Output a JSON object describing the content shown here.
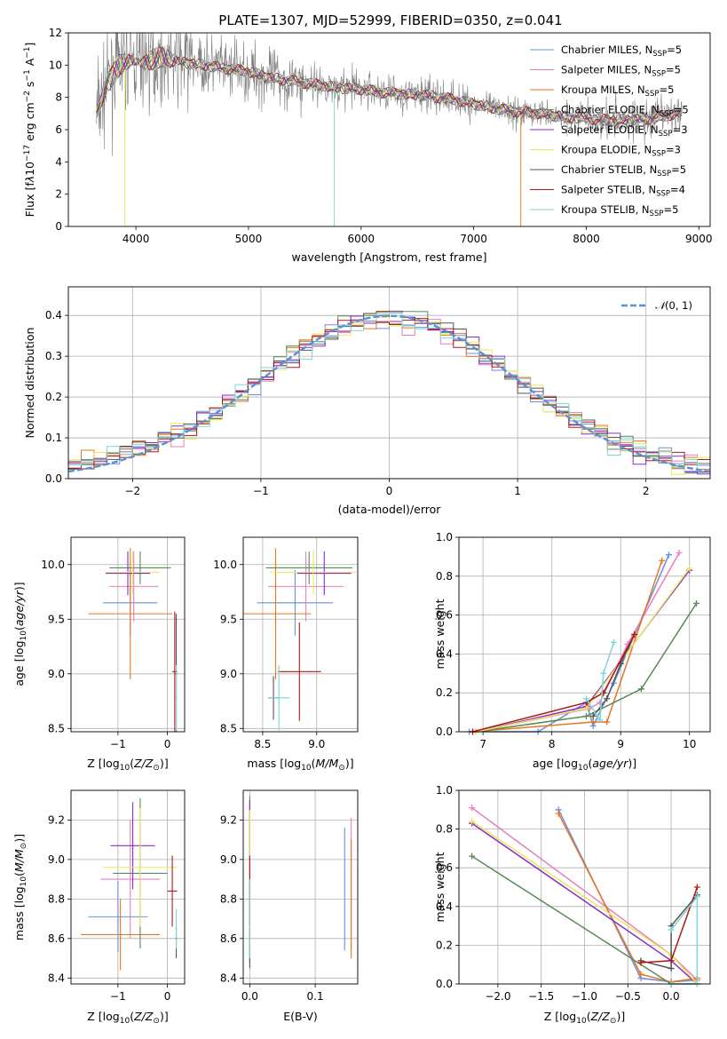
{
  "title": "PLATE=1307, MJD=52999, FIBERID=0350, z=0.041",
  "colors": {
    "Chabrier MILES": "#6a8fe0",
    "Salpeter MILES": "#e87fbf",
    "Kroupa MILES": "#e8761e",
    "Chabrier ELODIE": "#5a8a5a",
    "Salpeter ELODIE": "#8a2bc8",
    "Kroupa ELODIE": "#e8e85a",
    "Chabrier STELIB": "#555555",
    "Salpeter STELIB": "#b01818",
    "Kroupa STELIB": "#7fd6d6",
    "data": "#808080",
    "normal": "#5b8fd9"
  },
  "chart_data": [
    {
      "id": "spectrum",
      "type": "line",
      "title": "PLATE=1307, MJD=52999, FIBERID=0350, z=0.041",
      "xlabel": "wavelength [Angstrom, rest frame]",
      "ylabel": "Flux [f_λ10^-17 erg cm^-2 s^-1 A^-1]",
      "xlim": [
        3400,
        9100
      ],
      "ylim": [
        0,
        12
      ],
      "xticks": [
        4000,
        5000,
        6000,
        7000,
        8000,
        9000
      ],
      "yticks": [
        0,
        2,
        4,
        6,
        8,
        10,
        12
      ],
      "continuum": [
        [
          3650,
          7.0
        ],
        [
          3750,
          9.0
        ],
        [
          3850,
          10.0
        ],
        [
          3950,
          10.2
        ],
        [
          4050,
          10.2
        ],
        [
          4200,
          10.4
        ],
        [
          4400,
          10.2
        ],
        [
          4600,
          10.0
        ],
        [
          4800,
          9.8
        ],
        [
          5000,
          9.6
        ],
        [
          5200,
          9.2
        ],
        [
          5400,
          9.0
        ],
        [
          5600,
          8.8
        ],
        [
          5800,
          8.6
        ],
        [
          6000,
          8.5
        ],
        [
          6200,
          8.3
        ],
        [
          6400,
          8.2
        ],
        [
          6600,
          8.1
        ],
        [
          6800,
          7.9
        ],
        [
          7000,
          7.6
        ],
        [
          7200,
          7.3
        ],
        [
          7400,
          7.1
        ],
        [
          7600,
          7.0
        ],
        [
          7800,
          6.8
        ],
        [
          8000,
          6.7
        ],
        [
          8200,
          6.6
        ],
        [
          8400,
          6.6
        ],
        [
          8600,
          6.7
        ],
        [
          8800,
          7.0
        ]
      ],
      "legend": [
        "Chabrier MILES, N_SSP=5",
        "Salpeter MILES, N_SSP=5",
        "Kroupa MILES, N_SSP=5",
        "Chabrier ELODIE, N_SSP=5",
        "Salpeter ELODIE, N_SSP=3",
        "Kroupa ELODIE, N_SSP=3",
        "Chabrier STELIB, N_SSP=5",
        "Salpeter STELIB, N_SSP=4",
        "Kroupa STELIB, N_SSP=5"
      ]
    },
    {
      "id": "residuals",
      "type": "histogram",
      "xlabel": "(data-model)/error",
      "ylabel": "Normed distribution",
      "xlim": [
        -2.5,
        2.5
      ],
      "ylim": [
        0,
        0.47
      ],
      "xticks": [
        -2,
        -1,
        0,
        1,
        2
      ],
      "yticks": [
        0.0,
        0.1,
        0.2,
        0.3,
        0.4
      ],
      "bin_width": 0.1,
      "legend": "N(0,1)"
    },
    {
      "id": "age-vs-Z",
      "type": "errorbar",
      "xlabel": "Z [log10(Z/Z⊙)]",
      "ylabel": "age  [log10(age/yr)]",
      "xlim": [
        -1.95,
        0.35
      ],
      "ylim": [
        8.47,
        10.25
      ],
      "xticks": [
        -1,
        0
      ],
      "yticks": [
        8.5,
        9.0,
        9.5,
        10.0
      ],
      "points": [
        {
          "model": "Chabrier MILES",
          "x": -0.75,
          "xerr": 0.55,
          "y": 9.65,
          "yerr": 0.3
        },
        {
          "model": "Salpeter MILES",
          "x": -0.68,
          "xerr": 0.5,
          "y": 9.8,
          "yerr": 0.32
        },
        {
          "model": "Kroupa MILES",
          "x": -0.75,
          "xerr": 0.85,
          "y": 9.55,
          "yerr": 0.6
        },
        {
          "model": "Chabrier ELODIE",
          "x": -0.55,
          "xerr": 0.62,
          "y": 9.97,
          "yerr": 0.15
        },
        {
          "model": "Salpeter ELODIE",
          "x": -0.8,
          "xerr": 0.45,
          "y": 9.92,
          "yerr": 0.2
        },
        {
          "model": "Kroupa ELODIE",
          "x": -0.7,
          "xerr": 0.55,
          "y": 9.93,
          "yerr": 0.2
        },
        {
          "model": "Chabrier STELIB",
          "x": 0.18,
          "xerr": 0.02,
          "y": 9.0,
          "yerr": 0.55
        },
        {
          "model": "Salpeter STELIB",
          "x": 0.15,
          "xerr": 0.05,
          "y": 9.02,
          "yerr": 0.55
        },
        {
          "model": "Kroupa STELIB",
          "x": 0.18,
          "xerr": 0.02,
          "y": 8.78,
          "yerr": 0.3
        }
      ]
    },
    {
      "id": "age-vs-mass",
      "type": "errorbar",
      "xlabel": "mass [log10(M/M⊙)]",
      "ylabel": "",
      "xlim": [
        8.32,
        9.38
      ],
      "ylim": [
        8.47,
        10.25
      ],
      "xticks": [
        8.5,
        9.0
      ],
      "yticks": [
        8.5,
        9.0,
        9.5,
        10.0
      ],
      "points": [
        {
          "model": "Chabrier MILES",
          "x": 8.8,
          "xerr": 0.35,
          "y": 9.65,
          "yerr": 0.3
        },
        {
          "model": "Salpeter MILES",
          "x": 8.9,
          "xerr": 0.35,
          "y": 9.8,
          "yerr": 0.32
        },
        {
          "model": "Kroupa MILES",
          "x": 8.62,
          "xerr": 0.33,
          "y": 9.55,
          "yerr": 0.6
        },
        {
          "model": "Chabrier ELODIE",
          "x": 8.93,
          "xerr": 0.4,
          "y": 9.97,
          "yerr": 0.15
        },
        {
          "model": "Salpeter ELODIE",
          "x": 9.07,
          "xerr": 0.25,
          "y": 9.92,
          "yerr": 0.2
        },
        {
          "model": "Kroupa ELODIE",
          "x": 8.97,
          "xerr": 0.4,
          "y": 9.93,
          "yerr": 0.2
        },
        {
          "model": "Chabrier STELIB",
          "x": 8.6,
          "xerr": 0.05,
          "y": 8.78,
          "yerr": 0.2
        },
        {
          "model": "Salpeter STELIB",
          "x": 8.84,
          "xerr": 0.2,
          "y": 9.02,
          "yerr": 0.45
        },
        {
          "model": "Kroupa STELIB",
          "x": 8.65,
          "xerr": 0.1,
          "y": 8.78,
          "yerr": 0.3
        }
      ]
    },
    {
      "id": "massweight-vs-age",
      "type": "line",
      "xlabel": "age  [log10(age/yr)]",
      "ylabel": "mass weight",
      "xlim": [
        6.65,
        10.3
      ],
      "ylim": [
        0,
        1.0
      ],
      "xticks": [
        7,
        8,
        9,
        10
      ],
      "yticks": [
        0.0,
        0.2,
        0.4,
        0.6,
        0.8,
        1.0
      ],
      "series": [
        {
          "model": "Chabrier MILES",
          "points": [
            [
              6.8,
              0.0
            ],
            [
              7.8,
              0.0
            ],
            [
              8.5,
              0.15
            ],
            [
              8.6,
              0.03
            ],
            [
              8.9,
              0.25
            ],
            [
              9.7,
              0.91
            ]
          ]
        },
        {
          "model": "Salpeter MILES",
          "points": [
            [
              6.9,
              0.0
            ],
            [
              8.55,
              0.12
            ],
            [
              8.7,
              0.15
            ],
            [
              9.1,
              0.45
            ],
            [
              9.85,
              0.92
            ]
          ]
        },
        {
          "model": "Kroupa MILES",
          "points": [
            [
              6.85,
              0.0
            ],
            [
              8.6,
              0.05
            ],
            [
              8.8,
              0.05
            ],
            [
              9.6,
              0.88
            ]
          ]
        },
        {
          "model": "Chabrier ELODIE",
          "points": [
            [
              6.9,
              0.0
            ],
            [
              8.5,
              0.08
            ],
            [
              9.3,
              0.22
            ],
            [
              10.1,
              0.66
            ]
          ]
        },
        {
          "model": "Salpeter ELODIE",
          "points": [
            [
              6.9,
              0.0
            ],
            [
              8.5,
              0.13
            ],
            [
              10.0,
              0.83
            ]
          ]
        },
        {
          "model": "Kroupa ELODIE",
          "points": [
            [
              6.9,
              0.0
            ],
            [
              8.5,
              0.12
            ],
            [
              10.0,
              0.84
            ]
          ]
        },
        {
          "model": "Chabrier STELIB",
          "points": [
            [
              8.6,
              0.08
            ],
            [
              8.8,
              0.17
            ],
            [
              9.0,
              0.35
            ],
            [
              9.2,
              0.5
            ]
          ]
        },
        {
          "model": "Salpeter STELIB",
          "points": [
            [
              6.85,
              0.0
            ],
            [
              8.5,
              0.15
            ],
            [
              8.75,
              0.2
            ],
            [
              9.2,
              0.5
            ]
          ]
        },
        {
          "model": "Kroupa STELIB",
          "points": [
            [
              8.5,
              0.17
            ],
            [
              8.7,
              0.06
            ],
            [
              8.75,
              0.3
            ],
            [
              8.9,
              0.46
            ]
          ]
        }
      ]
    },
    {
      "id": "mass-vs-Z",
      "type": "errorbar",
      "xlabel": "Z [log10(Z/Z⊙)]",
      "ylabel": "mass [log10(M/M⊙)]",
      "xlim": [
        -1.95,
        0.35
      ],
      "ylim": [
        8.37,
        9.35
      ],
      "xticks": [
        -1,
        0
      ],
      "yticks": [
        8.4,
        8.6,
        8.8,
        9.0,
        9.2
      ],
      "points": [
        {
          "model": "Chabrier MILES",
          "x": -1.0,
          "xerr": 0.6,
          "y": 8.71,
          "yerr": 0.18
        },
        {
          "model": "Salpeter MILES",
          "x": -0.75,
          "xerr": 0.6,
          "y": 8.9,
          "yerr": 0.3
        },
        {
          "model": "Kroupa MILES",
          "x": -0.95,
          "xerr": 0.8,
          "y": 8.62,
          "yerr": 0.18
        },
        {
          "model": "Chabrier ELODIE",
          "x": -0.55,
          "xerr": 0.55,
          "y": 8.93,
          "yerr": 0.38
        },
        {
          "model": "Salpeter ELODIE",
          "x": -0.7,
          "xerr": 0.45,
          "y": 9.07,
          "yerr": 0.22
        },
        {
          "model": "Kroupa ELODIE",
          "x": -0.55,
          "xerr": 0.75,
          "y": 8.96,
          "yerr": 0.3
        },
        {
          "model": "Chabrier STELIB",
          "x": 0.18,
          "xerr": 0.02,
          "y": 8.6,
          "yerr": 0.1
        },
        {
          "model": "Salpeter STELIB",
          "x": 0.1,
          "xerr": 0.1,
          "y": 8.84,
          "yerr": 0.18
        },
        {
          "model": "Kroupa STELIB",
          "x": 0.18,
          "xerr": 0.02,
          "y": 8.65,
          "yerr": 0.1
        }
      ]
    },
    {
      "id": "mass-vs-ebv",
      "type": "errorbar",
      "xlabel": "E(B-V)",
      "ylabel": "",
      "xlim": [
        -0.01,
        0.165
      ],
      "ylim": [
        8.37,
        9.35
      ],
      "xticks": [
        0.0,
        0.1
      ],
      "yticks": [
        8.4,
        8.6,
        8.8,
        9.0,
        9.2
      ],
      "points": [
        {
          "model": "Chabrier MILES",
          "x": 0.145,
          "xerr": 0,
          "y": 8.85,
          "yerr": 0.31
        },
        {
          "model": "Salpeter MILES",
          "x": 0.155,
          "xerr": 0,
          "y": 8.88,
          "yerr": 0.33
        },
        {
          "model": "Kroupa MILES",
          "x": 0.155,
          "xerr": 0,
          "y": 8.8,
          "yerr": 0.3
        },
        {
          "model": "Chabrier ELODIE",
          "x": 0.0,
          "xerr": 0,
          "y": 8.9,
          "yerr": 0.42
        },
        {
          "model": "Salpeter ELODIE",
          "x": 0.0,
          "xerr": 0,
          "y": 9.05,
          "yerr": 0.25
        },
        {
          "model": "Kroupa ELODIE",
          "x": 0.0,
          "xerr": 0,
          "y": 8.95,
          "yerr": 0.3
        },
        {
          "model": "Chabrier STELIB",
          "x": 0.0,
          "xerr": 0,
          "y": 8.55,
          "yerr": 0.1
        },
        {
          "model": "Salpeter STELIB",
          "x": 0.0,
          "xerr": 0,
          "y": 8.84,
          "yerr": 0.18
        },
        {
          "model": "Kroupa STELIB",
          "x": 0.0,
          "xerr": 0,
          "y": 8.7,
          "yerr": 0.2
        }
      ]
    },
    {
      "id": "massweight-vs-Z",
      "type": "line",
      "xlabel": "Z [log10(Z/Z⊙)]",
      "ylabel": "mass weight",
      "xlim": [
        -2.45,
        0.45
      ],
      "ylim": [
        0,
        1.0
      ],
      "xticks": [
        -2.0,
        -1.5,
        -1.0,
        -0.5,
        0.0
      ],
      "yticks": [
        0.0,
        0.2,
        0.4,
        0.6,
        0.8,
        1.0
      ],
      "series": [
        {
          "model": "Chabrier MILES",
          "points": [
            [
              -1.3,
              0.9
            ],
            [
              -0.35,
              0.03
            ],
            [
              0.0,
              0.01
            ],
            [
              0.3,
              0.02
            ]
          ]
        },
        {
          "model": "Salpeter MILES",
          "points": [
            [
              -2.3,
              0.91
            ],
            [
              0.0,
              0.15
            ],
            [
              0.3,
              0.02
            ]
          ]
        },
        {
          "model": "Kroupa MILES",
          "points": [
            [
              -1.3,
              0.88
            ],
            [
              -0.35,
              0.05
            ],
            [
              0.0,
              0.01
            ],
            [
              0.3,
              0.03
            ]
          ]
        },
        {
          "model": "Chabrier ELODIE",
          "points": [
            [
              -2.3,
              0.66
            ],
            [
              0.0,
              0.0
            ],
            [
              0.3,
              0.0
            ]
          ]
        },
        {
          "model": "Salpeter ELODIE",
          "points": [
            [
              -2.3,
              0.83
            ],
            [
              0.0,
              0.12
            ],
            [
              0.3,
              0.0
            ]
          ]
        },
        {
          "model": "Kroupa ELODIE",
          "points": [
            [
              -2.3,
              0.84
            ],
            [
              0.0,
              0.15
            ],
            [
              0.3,
              0.0
            ]
          ]
        },
        {
          "model": "Chabrier STELIB",
          "points": [
            [
              -0.35,
              0.12
            ],
            [
              0.0,
              0.08
            ],
            [
              0.0,
              0.3
            ],
            [
              0.3,
              0.46
            ]
          ]
        },
        {
          "model": "Salpeter STELIB",
          "points": [
            [
              -0.35,
              0.11
            ],
            [
              0.0,
              0.12
            ],
            [
              0.3,
              0.5
            ]
          ]
        },
        {
          "model": "Kroupa STELIB",
          "points": [
            [
              0.0,
              0.28
            ],
            [
              0.3,
              0.45
            ],
            [
              0.3,
              0.0
            ],
            [
              0.0,
              0.0
            ]
          ]
        }
      ]
    }
  ]
}
